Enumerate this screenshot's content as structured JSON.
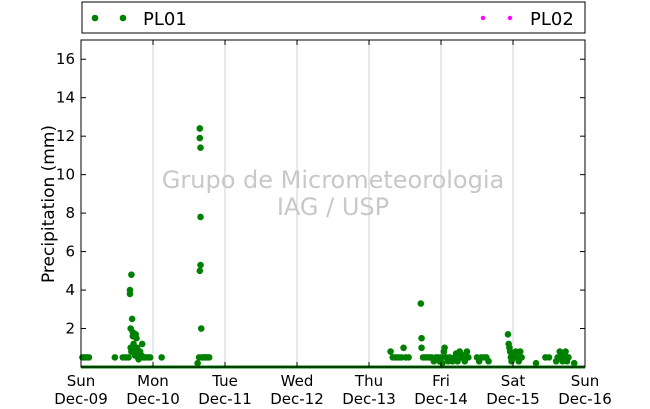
{
  "chart_data": {
    "type": "scatter",
    "ylabel": "Precipitation (mm)",
    "ylim": [
      0,
      17
    ],
    "yticks": [
      2,
      4,
      6,
      8,
      10,
      12,
      14,
      16
    ],
    "xlim": [
      0,
      7
    ],
    "xticks": [
      {
        "day": "Sun",
        "date": "Dec-09",
        "x": 0
      },
      {
        "day": "Mon",
        "date": "Dec-10",
        "x": 1
      },
      {
        "day": "Tue",
        "date": "Dec-11",
        "x": 2
      },
      {
        "day": "Wed",
        "date": "Dec-12",
        "x": 3
      },
      {
        "day": "Thu",
        "date": "Dec-13",
        "x": 4
      },
      {
        "day": "Fri",
        "date": "Dec-14",
        "x": 5
      },
      {
        "day": "Sat",
        "date": "Dec-15",
        "x": 6
      },
      {
        "day": "Sun",
        "date": "Dec-16",
        "x": 7
      }
    ],
    "grid": "vertical",
    "legend_position": "top",
    "watermark": [
      "Grupo de Micrometeorologia",
      "IAG / USP"
    ],
    "series": [
      {
        "name": "PL01",
        "color": "#008000",
        "points": [
          [
            0.02,
            0.5
          ],
          [
            0.05,
            0.5
          ],
          [
            0.08,
            0.5
          ],
          [
            0.11,
            0.5
          ],
          [
            0.47,
            0.5
          ],
          [
            0.58,
            0.5
          ],
          [
            0.62,
            0.5
          ],
          [
            0.66,
            0.5
          ],
          [
            0.68,
            4.0
          ],
          [
            0.68,
            3.8
          ],
          [
            0.69,
            2.0
          ],
          [
            0.69,
            1.0
          ],
          [
            0.7,
            0.8
          ],
          [
            0.7,
            4.8
          ],
          [
            0.71,
            2.5
          ],
          [
            0.72,
            1.8
          ],
          [
            0.72,
            1.6
          ],
          [
            0.73,
            1.2
          ],
          [
            0.74,
            0.8
          ],
          [
            0.75,
            0.6
          ],
          [
            0.76,
            1.7
          ],
          [
            0.77,
            1.5
          ],
          [
            0.78,
            1.0
          ],
          [
            0.79,
            0.5
          ],
          [
            0.8,
            0.4
          ],
          [
            0.82,
            0.8
          ],
          [
            0.84,
            0.6
          ],
          [
            0.85,
            1.2
          ],
          [
            0.86,
            0.5
          ],
          [
            0.88,
            0.5
          ],
          [
            0.9,
            0.5
          ],
          [
            0.93,
            0.5
          ],
          [
            0.96,
            0.5
          ],
          [
            1.12,
            0.5
          ],
          [
            1.62,
            0.2
          ],
          [
            1.64,
            0.5
          ],
          [
            1.65,
            12.4
          ],
          [
            1.65,
            11.9
          ],
          [
            1.66,
            11.4
          ],
          [
            1.66,
            7.8
          ],
          [
            1.66,
            5.3
          ],
          [
            1.65,
            5.0
          ],
          [
            1.67,
            2.0
          ],
          [
            1.68,
            0.5
          ],
          [
            1.7,
            0.5
          ],
          [
            1.72,
            0.5
          ],
          [
            1.74,
            0.5
          ],
          [
            1.76,
            0.5
          ],
          [
            1.78,
            0.5
          ],
          [
            4.3,
            0.8
          ],
          [
            4.33,
            0.5
          ],
          [
            4.37,
            0.5
          ],
          [
            4.41,
            0.5
          ],
          [
            4.45,
            0.5
          ],
          [
            4.48,
            1.0
          ],
          [
            4.51,
            0.5
          ],
          [
            4.55,
            0.5
          ],
          [
            4.72,
            3.3
          ],
          [
            4.73,
            1.5
          ],
          [
            4.73,
            1.0
          ],
          [
            4.75,
            0.5
          ],
          [
            4.78,
            0.5
          ],
          [
            4.81,
            0.5
          ],
          [
            4.84,
            0.5
          ],
          [
            4.87,
            0.5
          ],
          [
            4.9,
            0.3
          ],
          [
            4.93,
            0.5
          ],
          [
            4.96,
            0.5
          ],
          [
            4.98,
            0.3
          ],
          [
            5.0,
            0.5
          ],
          [
            5.02,
            0.2
          ],
          [
            5.04,
            0.8
          ],
          [
            5.05,
            1.0
          ],
          [
            5.07,
            0.5
          ],
          [
            5.1,
            0.3
          ],
          [
            5.12,
            0.5
          ],
          [
            5.14,
            0.4
          ],
          [
            5.16,
            0.3
          ],
          [
            5.19,
            0.5
          ],
          [
            5.21,
            0.7
          ],
          [
            5.23,
            0.3
          ],
          [
            5.26,
            0.8
          ],
          [
            5.28,
            0.5
          ],
          [
            5.31,
            0.6
          ],
          [
            5.33,
            0.3
          ],
          [
            5.36,
            0.8
          ],
          [
            5.38,
            0.5
          ],
          [
            5.5,
            0.5
          ],
          [
            5.53,
            0.3
          ],
          [
            5.56,
            0.5
          ],
          [
            5.6,
            0.5
          ],
          [
            5.63,
            0.5
          ],
          [
            5.66,
            0.3
          ],
          [
            5.93,
            1.7
          ],
          [
            5.94,
            1.2
          ],
          [
            5.95,
            1.0
          ],
          [
            5.96,
            0.8
          ],
          [
            5.97,
            0.5
          ],
          [
            5.98,
            0.3
          ],
          [
            6.0,
            0.6
          ],
          [
            6.02,
            0.5
          ],
          [
            6.04,
            0.8
          ],
          [
            6.06,
            0.5
          ],
          [
            6.08,
            0.3
          ],
          [
            6.1,
            0.8
          ],
          [
            6.12,
            0.5
          ],
          [
            6.32,
            0.2
          ],
          [
            6.45,
            0.5
          ],
          [
            6.5,
            0.5
          ],
          [
            6.6,
            0.3
          ],
          [
            6.62,
            0.5
          ],
          [
            6.65,
            0.8
          ],
          [
            6.67,
            0.5
          ],
          [
            6.69,
            0.3
          ],
          [
            6.71,
            0.6
          ],
          [
            6.73,
            0.8
          ],
          [
            6.75,
            0.3
          ],
          [
            6.77,
            0.5
          ],
          [
            6.85,
            0.2
          ]
        ],
        "baseline": true
      },
      {
        "name": "PL02",
        "color": "#ff00ff",
        "points": []
      }
    ]
  }
}
